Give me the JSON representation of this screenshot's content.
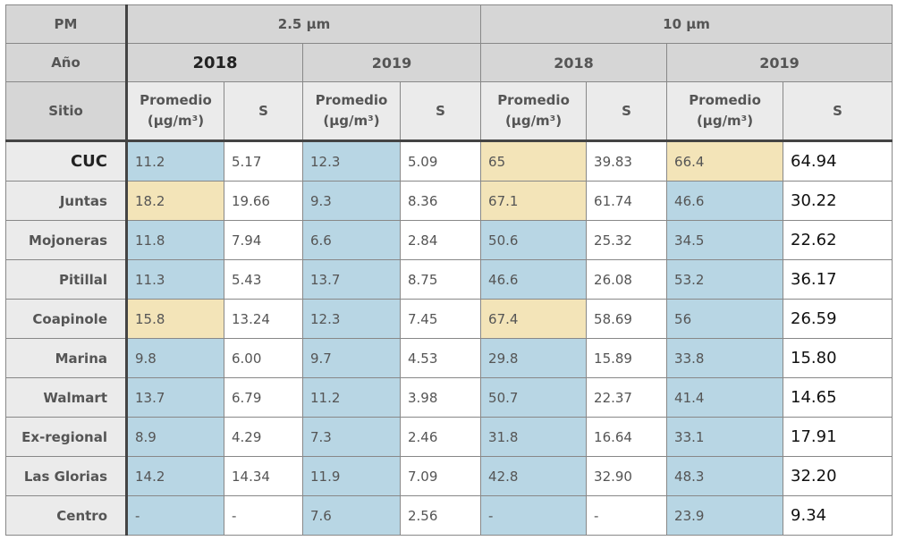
{
  "header": {
    "pm": "PM",
    "pm25": "2.5 µm",
    "pm10": "10 µm",
    "ano": "Año",
    "years": [
      "2018",
      "2019",
      "2018",
      "2019"
    ],
    "sitio": "Sitio",
    "promedio": [
      "Promedio",
      "(µg/m³)"
    ],
    "s": "S"
  },
  "colors": {
    "header": "#d6d6d6",
    "subheader": "#ebebeb"
  },
  "rows": [
    {
      "site": "CUC",
      "cells": [
        "11.2",
        "5.17",
        "12.3",
        "5.09",
        "65",
        "39.83",
        "66.4",
        "64.94"
      ],
      "fills": [
        "#b8d6e4",
        "#b8d6e4",
        "#f3e4b8",
        "#f3e4b8"
      ]
    },
    {
      "site": "Juntas",
      "cells": [
        "18.2",
        "19.66",
        "9.3",
        "8.36",
        "67.1",
        "61.74",
        "46.6",
        "30.22"
      ],
      "fills": [
        "#f3e4b8",
        "#b8d6e4",
        "#f3e4b8",
        "#b8d6e4"
      ]
    },
    {
      "site": "Mojoneras",
      "cells": [
        "11.8",
        "7.94",
        "6.6",
        "2.84",
        "50.6",
        "25.32",
        "34.5",
        "22.62"
      ],
      "fills": [
        "#b8d6e4",
        "#b8d6e4",
        "#b8d6e4",
        "#b8d6e4"
      ]
    },
    {
      "site": "Pitillal",
      "cells": [
        "11.3",
        "5.43",
        "13.7",
        "8.75",
        "46.6",
        "26.08",
        "53.2",
        "36.17"
      ],
      "fills": [
        "#b8d6e4",
        "#b8d6e4",
        "#b8d6e4",
        "#b8d6e4"
      ]
    },
    {
      "site": "Coapinole",
      "cells": [
        "15.8",
        "13.24",
        "12.3",
        "7.45",
        "67.4",
        "58.69",
        "56",
        "26.59"
      ],
      "fills": [
        "#f3e4b8",
        "#b8d6e4",
        "#f3e4b8",
        "#b8d6e4"
      ]
    },
    {
      "site": "Marina",
      "cells": [
        "9.8",
        "6.00",
        "9.7",
        "4.53",
        "29.8",
        "15.89",
        "33.8",
        "15.80"
      ],
      "fills": [
        "#b8d6e4",
        "#b8d6e4",
        "#b8d6e4",
        "#b8d6e4"
      ]
    },
    {
      "site": "Walmart",
      "cells": [
        "13.7",
        "6.79",
        "11.2",
        "3.98",
        "50.7",
        "22.37",
        "41.4",
        "14.65"
      ],
      "fills": [
        "#b8d6e4",
        "#b8d6e4",
        "#b8d6e4",
        "#b8d6e4"
      ]
    },
    {
      "site": "Ex-regional",
      "cells": [
        "8.9",
        "4.29",
        "7.3",
        "2.46",
        "31.8",
        "16.64",
        "33.1",
        "17.91"
      ],
      "fills": [
        "#b8d6e4",
        "#b8d6e4",
        "#b8d6e4",
        "#b8d6e4"
      ]
    },
    {
      "site": "Las Glorias",
      "cells": [
        "14.2",
        "14.34",
        "11.9",
        "7.09",
        "42.8",
        "32.90",
        "48.3",
        "32.20"
      ],
      "fills": [
        "#b8d6e4",
        "#b8d6e4",
        "#b8d6e4",
        "#b8d6e4"
      ]
    },
    {
      "site": "Centro",
      "cells": [
        "-",
        "-",
        "7.6",
        "2.56",
        "-",
        "-",
        "23.9",
        "9.34"
      ],
      "fills": [
        "#b8d6e4",
        "#b8d6e4",
        "#b8d6e4",
        "#b8d6e4"
      ]
    }
  ]
}
